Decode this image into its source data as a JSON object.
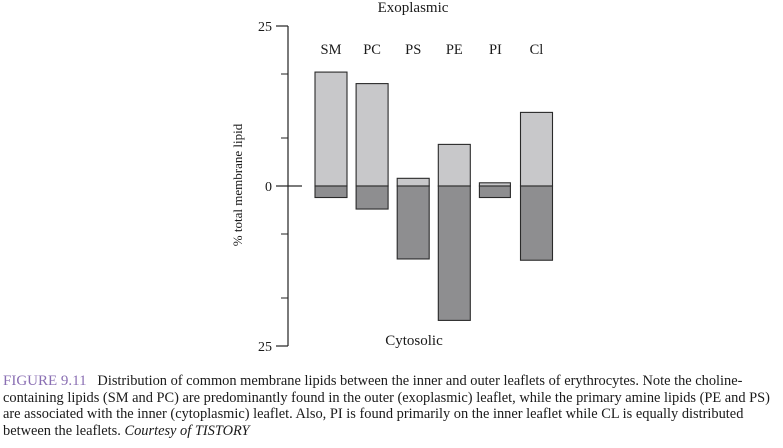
{
  "chart_data": {
    "type": "bar",
    "title": "",
    "top_label": "Exoplasmic",
    "bottom_label": "Cytosolic",
    "ylabel": "% total membrane lipid",
    "ylim": [
      -25,
      25
    ],
    "y_tick_labels": [
      {
        "value": 25,
        "label": "25"
      },
      {
        "value": 0,
        "label": "0"
      },
      {
        "value": -25,
        "label": "25"
      }
    ],
    "y_minor_ticks": [
      17.5,
      7.5,
      -7.5,
      -17.5
    ],
    "categories": [
      "SM",
      "PC",
      "PS",
      "PE",
      "PI",
      "Cl"
    ],
    "series": [
      {
        "name": "",
        "leaflet": "exoplasmic",
        "color": "#c8c8ca",
        "values": [
          17.8,
          16.0,
          1.2,
          6.5,
          0.5,
          11.5
        ]
      },
      {
        "name": "",
        "leaflet": "cytosolic",
        "color": "#8e8e90",
        "values": [
          -1.8,
          -3.6,
          -11.4,
          -21.0,
          -1.8,
          -11.6
        ]
      }
    ],
    "grid": false,
    "legend": "none"
  },
  "caption": {
    "figure_label": "FIGURE 9.11",
    "text": "Distribution of common membrane lipids between the inner and outer leaflets of erythrocytes. Note the choline-containing lipids (SM and PC) are predominantly found in the outer (exoplasmic) leaflet, while the primary amine lipids (PE and PS) are associated with the inner (cytoplasmic) leaflet. Also, PI is found primarily on the inner leaflet while CL is equally distributed between the leaflets.",
    "credit": "Courtesy of TISTORY"
  }
}
